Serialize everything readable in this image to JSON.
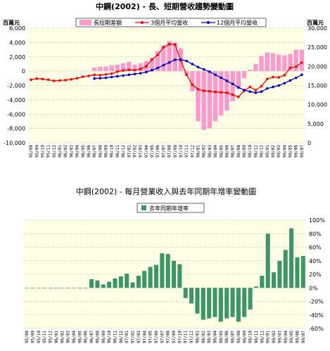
{
  "colors": {
    "panel1_background": "#ffffe6",
    "panel2_background": "#ffffe6",
    "long_short_bar": "#ff99cc",
    "ma3": "#ff0000",
    "ma12": "#0000cc",
    "yoy_bar": "#3b9567"
  },
  "chart_data": [
    {
      "type": "bar+line",
      "title": "中鋼(2002) -  長、短期營收趨勢變動圖",
      "y_left_unit": "百萬元",
      "y_right_unit": "百萬元",
      "y_left_range": [
        -10000,
        6000
      ],
      "y_left_ticks": [
        "6,000",
        "4,000",
        "2,000",
        "0",
        "-2,000",
        "-4,000",
        "-6,000",
        "-8,000",
        "-10,000"
      ],
      "y_left_tick_values": [
        6000,
        4000,
        2000,
        0,
        -2000,
        -4000,
        -6000,
        -8000,
        -10000
      ],
      "y_right_range": [
        0,
        30000
      ],
      "y_right_ticks": [
        "30,000",
        "25,000",
        "20,000",
        "15,000",
        "10,000",
        "5,000",
        "0"
      ],
      "y_right_tick_values": [
        30000,
        25000,
        20000,
        15000,
        10000,
        5000,
        0
      ],
      "grid": true,
      "legend_position": "top",
      "x": [
        "95/08",
        "95/09",
        "95/10",
        "95/11",
        "95/12",
        "96/01",
        "96/02",
        "96/03",
        "96/04",
        "96/05",
        "96/06",
        "96/07",
        "96/08",
        "96/09",
        "96/10",
        "96/11",
        "96/12",
        "97/01",
        "97/02",
        "97/03",
        "97/04",
        "97/05",
        "97/06",
        "97/07",
        "97/08",
        "97/09",
        "97/10",
        "97/11",
        "97/12",
        "98/01",
        "98/02",
        "98/03",
        "98/04",
        "98/05",
        "98/06",
        "98/07",
        "98/08",
        "98/09",
        "98/10",
        "98/11",
        "98/12",
        "99/01",
        "99/02",
        "99/03",
        "99/04",
        "99/05",
        "99/06",
        "99/07"
      ],
      "series": [
        {
          "name": "長短期差額",
          "kind": "bar",
          "axis": "left",
          "values": [
            null,
            null,
            null,
            null,
            null,
            null,
            null,
            null,
            null,
            null,
            null,
            500,
            600,
            650,
            800,
            900,
            1100,
            1300,
            900,
            1100,
            1400,
            1800,
            2800,
            3600,
            4200,
            4000,
            3200,
            -500,
            -2800,
            -7000,
            -8200,
            -8000,
            -7000,
            -6200,
            -5500,
            -4200,
            -2500,
            -1000,
            200,
            1000,
            2100,
            2600,
            2500,
            2300,
            2200,
            2400,
            3000,
            3000
          ]
        },
        {
          "name": "3個月平均營收",
          "kind": "line",
          "axis": "right",
          "values": [
            16500,
            16800,
            16700,
            16500,
            16200,
            16300,
            16400,
            16600,
            16900,
            17300,
            17500,
            17800,
            17700,
            17900,
            18100,
            18600,
            18900,
            19100,
            19000,
            19300,
            20000,
            21800,
            23000,
            25000,
            25800,
            25700,
            21500,
            17800,
            15200,
            14000,
            13600,
            13500,
            13300,
            13200,
            13100,
            12600,
            12000,
            13600,
            14600,
            13800,
            14800,
            16700,
            17200,
            17100,
            17700,
            19600,
            19900,
            21000
          ]
        },
        {
          "name": "12個月平均營收",
          "kind": "line",
          "axis": "right",
          "values": [
            null,
            null,
            null,
            null,
            null,
            null,
            null,
            null,
            null,
            null,
            null,
            16800,
            16900,
            17000,
            17200,
            17400,
            17600,
            17800,
            18000,
            18200,
            18500,
            19000,
            19600,
            20300,
            21000,
            21700,
            21800,
            21400,
            20600,
            19800,
            19200,
            18600,
            17800,
            17000,
            16200,
            15400,
            14500,
            13800,
            13400,
            13100,
            13400,
            14200,
            14600,
            15000,
            15600,
            16300,
            17000,
            17800
          ]
        }
      ]
    },
    {
      "type": "bar",
      "title": "中鋼(2002) -  每月營業收入與去年同期年增率變動圖",
      "y_right_range": [
        -60,
        100
      ],
      "y_right_ticks": [
        "100%",
        "80%",
        "60%",
        "40%",
        "20%",
        "0%",
        "-20%",
        "-40%",
        "-60%"
      ],
      "y_right_tick_values": [
        100,
        80,
        60,
        40,
        20,
        0,
        -20,
        -40,
        -60
      ],
      "grid": true,
      "legend_position": "top",
      "x": [
        "95/08",
        "95/09",
        "95/10",
        "95/11",
        "95/12",
        "96/01",
        "96/02",
        "96/03",
        "96/04",
        "96/05",
        "96/06",
        "96/07",
        "96/08",
        "96/09",
        "96/10",
        "96/11",
        "96/12",
        "97/01",
        "97/02",
        "97/03",
        "97/04",
        "97/05",
        "97/06",
        "97/07",
        "97/08",
        "97/09",
        "97/10",
        "97/11",
        "97/12",
        "98/01",
        "98/02",
        "98/03",
        "98/04",
        "98/05",
        "98/06",
        "98/07",
        "98/08",
        "98/09",
        "98/10",
        "98/11",
        "98/12",
        "99/01",
        "99/02",
        "99/03",
        "99/04",
        "99/05",
        "99/06",
        "99/07"
      ],
      "series": [
        {
          "name": "去年同期年增率",
          "values": [
            0,
            0,
            0,
            0,
            0,
            0,
            0,
            0,
            0,
            0,
            0,
            13,
            11,
            5,
            9,
            14,
            17,
            21,
            8,
            18,
            25,
            31,
            34,
            51,
            50,
            40,
            35,
            -15,
            -23,
            -38,
            -47,
            -45,
            -43,
            -50,
            -45,
            -43,
            -50,
            -43,
            -32,
            2,
            18,
            80,
            23,
            40,
            56,
            88,
            45,
            47
          ]
        }
      ]
    }
  ]
}
